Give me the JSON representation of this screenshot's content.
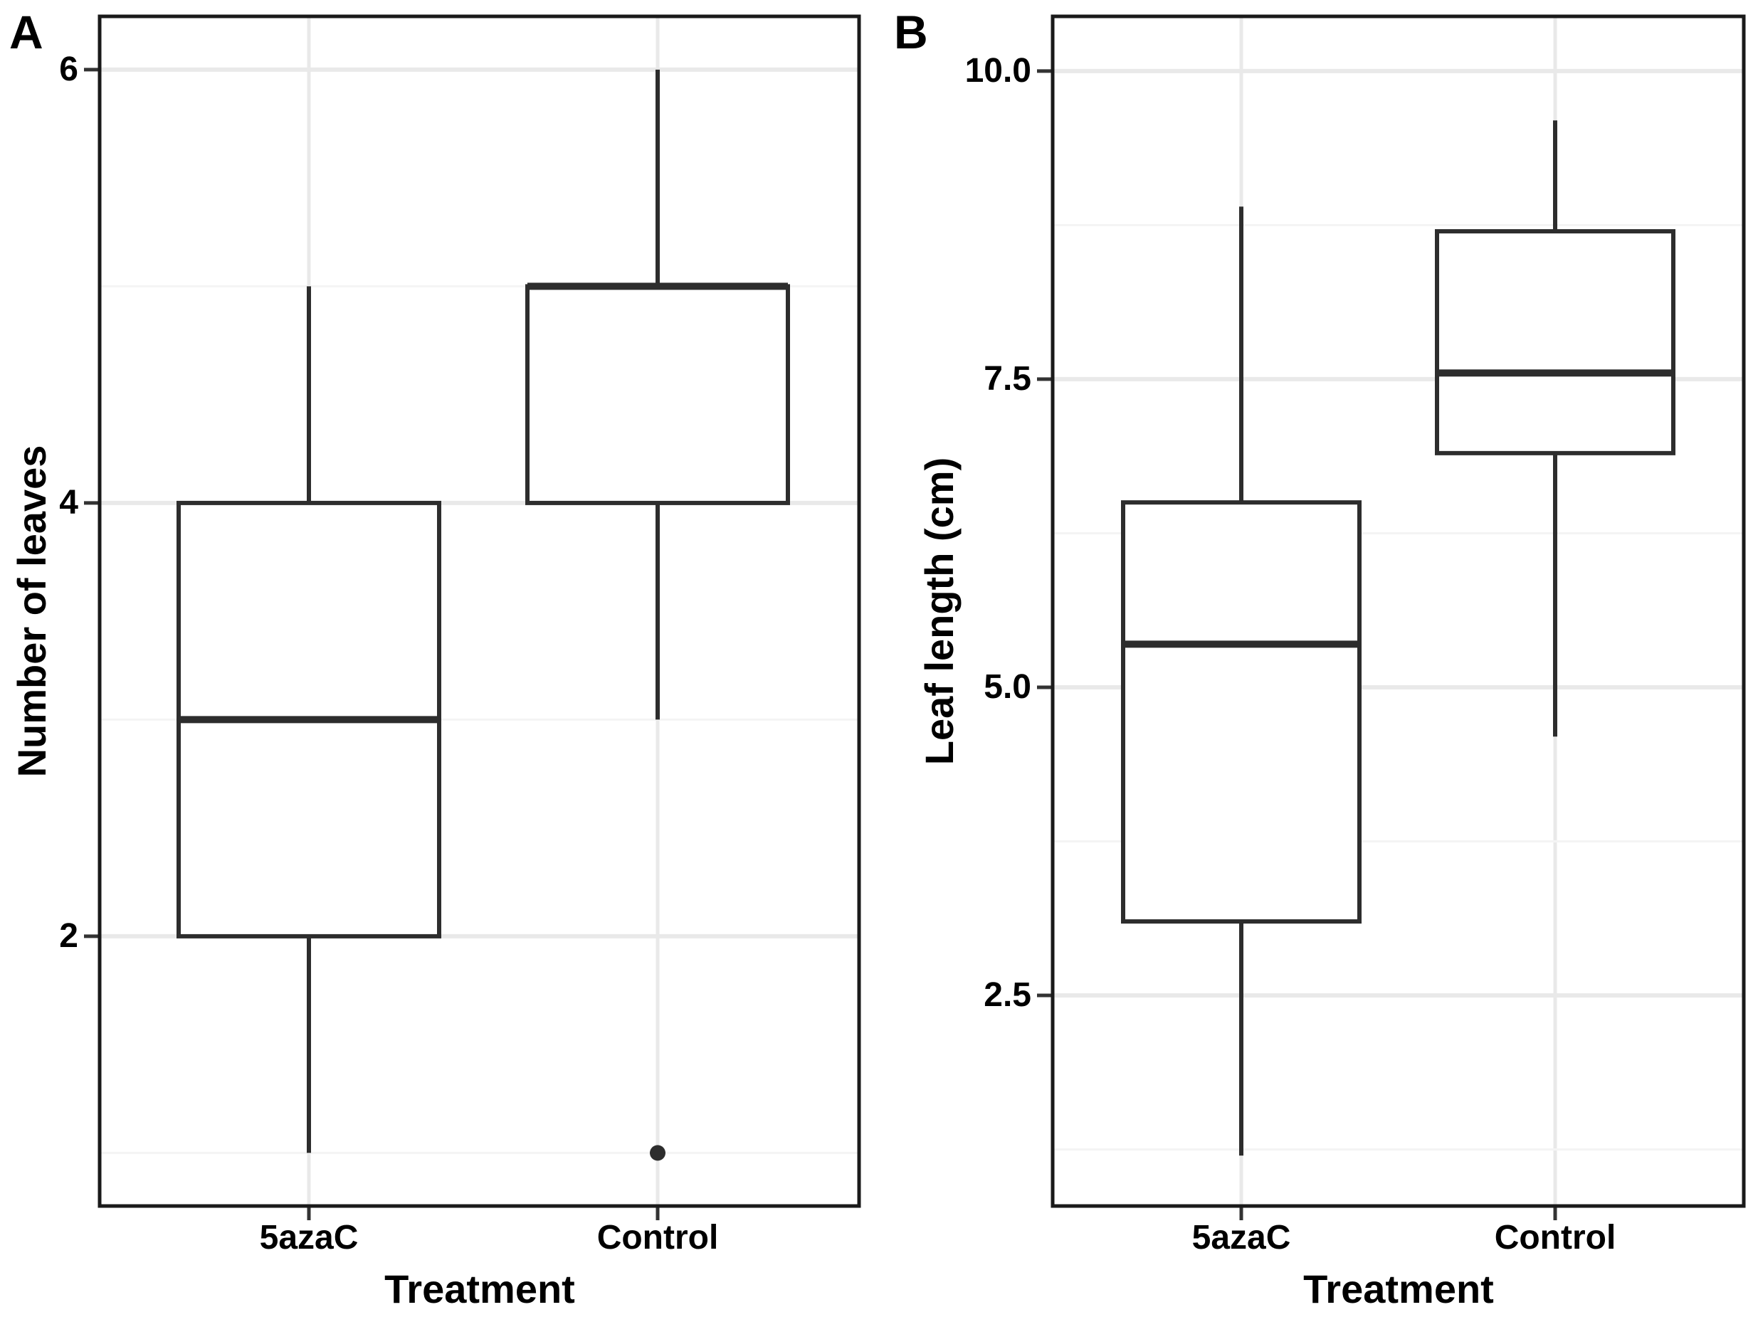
{
  "styles": {
    "background": "#ffffff",
    "box_stroke": "#2d2d2d",
    "median_stroke": "#2d2d2d",
    "outlier_fill": "#2d2d2d",
    "panel_border": "#1a1a1a",
    "grid_major": "#e9e9e9",
    "grid_minor": "#f4f4f4",
    "tick_mark": "#333333",
    "text": "#000000"
  },
  "chart_data": [
    {
      "type": "boxplot",
      "panel_label": "A",
      "xlabel": "Treatment",
      "ylabel": "Number of leaves",
      "categories": [
        "5azaC",
        "Control"
      ],
      "y_ticks": {
        "values": [
          6,
          4,
          2
        ],
        "labels": [
          "6",
          "4",
          "2"
        ]
      },
      "y_minor": [
        5,
        3,
        1
      ],
      "ylim": [
        0.755,
        6.246
      ],
      "grid": "horizontal major+minor, vertical major at categories",
      "legend": "none",
      "boxes": [
        {
          "category": "5azaC",
          "whisker_low": 1,
          "q1": 2,
          "median": 3,
          "q3": 4,
          "whisker_high": 5,
          "outliers": []
        },
        {
          "category": "Control",
          "whisker_low": 3,
          "q1": 4,
          "median": 5,
          "q3": 5,
          "whisker_high": 6,
          "outliers": [
            1
          ]
        }
      ]
    },
    {
      "type": "boxplot",
      "panel_label": "B",
      "xlabel": "Treatment",
      "ylabel": "Leaf length (cm)",
      "categories": [
        "5azaC",
        "Control"
      ],
      "y_ticks": {
        "values": [
          10.0,
          7.5,
          5.0,
          2.5
        ],
        "labels": [
          "10.0",
          "7.5",
          "5.0",
          "2.5"
        ]
      },
      "y_minor": [
        8.75,
        6.25,
        3.75,
        1.25
      ],
      "ylim": [
        0.791,
        10.444
      ],
      "grid": "horizontal major+minor, vertical major at categories",
      "legend": "none",
      "boxes": [
        {
          "category": "5azaC",
          "whisker_low": 1.2,
          "q1": 3.1,
          "median": 5.35,
          "q3": 6.5,
          "whisker_high": 8.9,
          "outliers": []
        },
        {
          "category": "Control",
          "whisker_low": 4.6,
          "q1": 6.9,
          "median": 7.55,
          "q3": 8.7,
          "whisker_high": 9.6,
          "outliers": []
        }
      ]
    }
  ]
}
